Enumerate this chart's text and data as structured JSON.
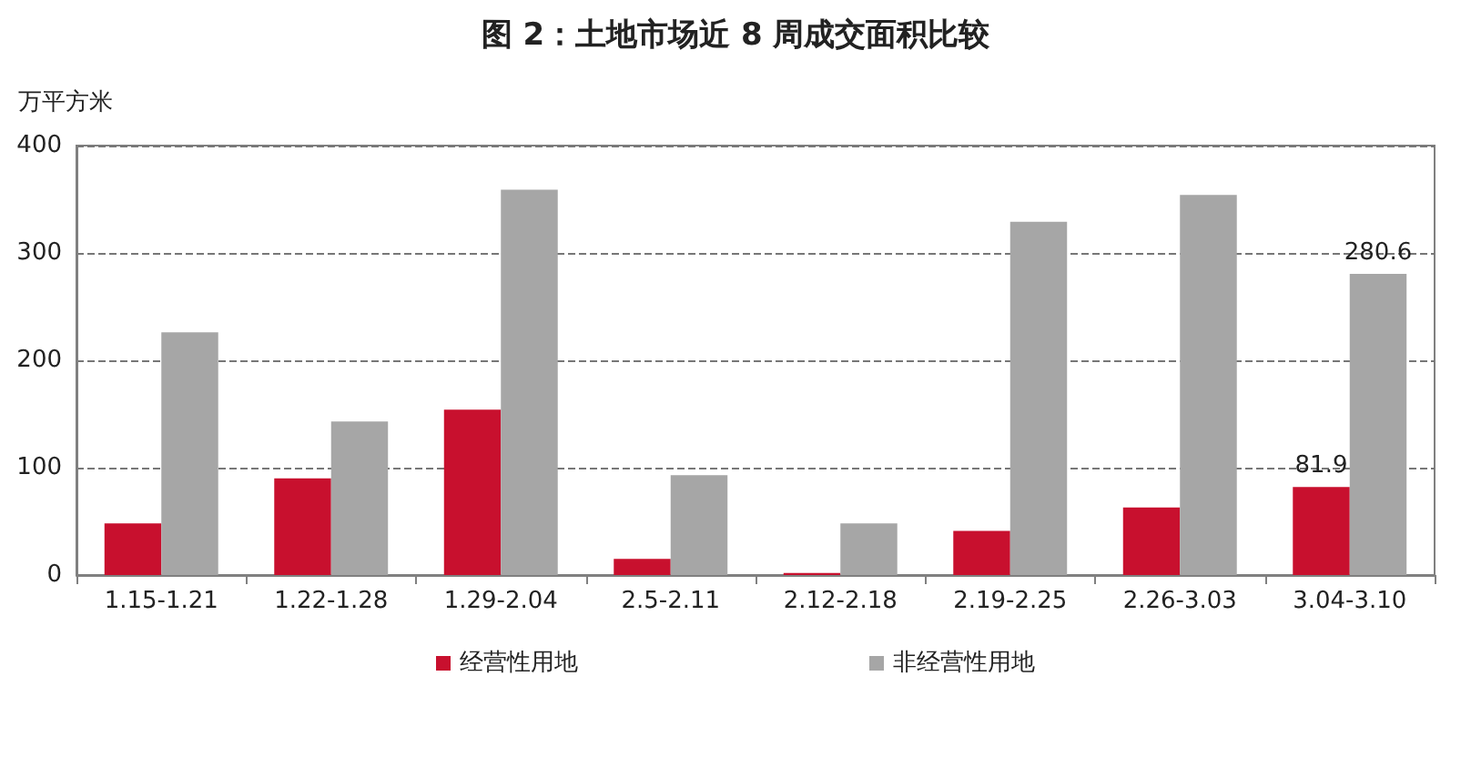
{
  "chart_data": {
    "type": "bar",
    "title": "图 2：土地市场近 8 周成交面积比较",
    "ylabel": "万平方米",
    "categories": [
      "1.15-1.21",
      "1.22-1.28",
      "1.29-2.04",
      "2.5-2.11",
      "2.12-2.18",
      "2.19-2.25",
      "2.26-3.03",
      "3.04-3.10"
    ],
    "series": [
      {
        "name": "经营性用地",
        "color": "#c8102e",
        "values": [
          48,
          90,
          154,
          15,
          2,
          41,
          63,
          81.9
        ],
        "value_labels": [
          null,
          null,
          null,
          null,
          null,
          null,
          null,
          "81.9"
        ]
      },
      {
        "name": "非经营性用地",
        "color": "#a6a6a6",
        "values": [
          226,
          143,
          359,
          93,
          48,
          329,
          354,
          280.6
        ],
        "value_labels": [
          null,
          null,
          null,
          null,
          null,
          null,
          null,
          "280.6"
        ]
      }
    ],
    "ylim": [
      0,
      400
    ],
    "yticks": [
      0,
      100,
      200,
      300,
      400
    ],
    "grid": "y",
    "legend": "bottom"
  }
}
